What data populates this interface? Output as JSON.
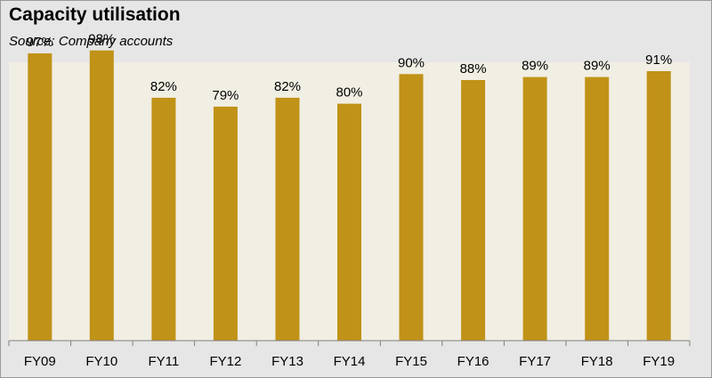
{
  "chart_data": {
    "type": "bar",
    "title": "Capacity utilisation",
    "subtitle": "Source: Company accounts",
    "categories": [
      "FY09",
      "FY10",
      "FY11",
      "FY12",
      "FY13",
      "FY14",
      "FY15",
      "FY16",
      "FY17",
      "FY18",
      "FY19"
    ],
    "values": [
      97,
      98,
      82,
      79,
      82,
      80,
      90,
      88,
      89,
      89,
      91
    ],
    "value_labels": [
      "97%",
      "98%",
      "82%",
      "79%",
      "82%",
      "80%",
      "90%",
      "88%",
      "89%",
      "89%",
      "91%"
    ],
    "ylim": [
      0,
      100
    ],
    "grid": false,
    "legend": "none",
    "colors": {
      "bar": "#c09217",
      "plot_background": "#f1eee3",
      "outer_background": "#e6e6e6",
      "axis": "#808080"
    }
  }
}
